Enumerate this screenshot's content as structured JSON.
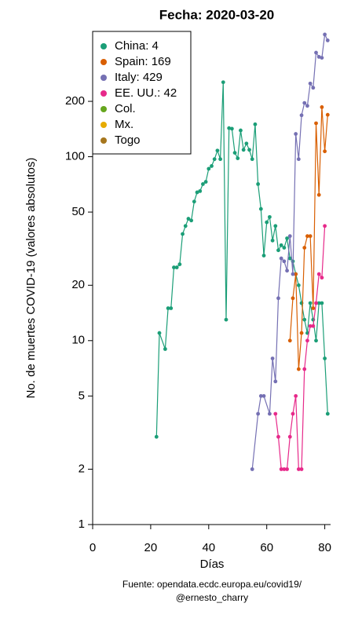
{
  "chart_data": {
    "type": "line",
    "title": "Fecha: 2020-03-20",
    "ylabel": "No. de muertes COVID-19 (valores absolutos)",
    "xlabel": "Días",
    "caption": [
      "Fuente: opendata.ecdc.europa.eu/covid19/",
      "@ernesto_charry"
    ],
    "xlim": [
      0,
      82
    ],
    "xticks": [
      0,
      20,
      40,
      60,
      80
    ],
    "ylim": [
      1,
      480
    ],
    "yticks": [
      1,
      2,
      5,
      10,
      20,
      50,
      100,
      200
    ],
    "log_y": true,
    "legend": "top-left",
    "series": [
      {
        "name": "China: 4",
        "color": "#1b9e77",
        "x": [
          22,
          23,
          25,
          26,
          27,
          28,
          29,
          30,
          31,
          32,
          33,
          34,
          35,
          36,
          37,
          38,
          39,
          40,
          41,
          42,
          43,
          44,
          45,
          46,
          47,
          48,
          49,
          50,
          51,
          52,
          53,
          54,
          55,
          56,
          57,
          58,
          59,
          60,
          61,
          62,
          63,
          64,
          65,
          66,
          67,
          68,
          69,
          70,
          71,
          72,
          73,
          74,
          75,
          76,
          77,
          78,
          79,
          80,
          81
        ],
        "values": [
          3,
          11,
          9,
          15,
          15,
          25,
          25,
          26,
          38,
          42,
          46,
          45,
          57,
          64,
          65,
          71,
          73,
          86,
          89,
          97,
          108,
          97,
          254,
          13,
          143,
          142,
          105,
          98,
          139,
          109,
          118,
          109,
          97,
          150,
          71,
          52,
          29,
          44,
          47,
          35,
          42,
          31,
          33,
          32,
          36,
          28,
          27,
          23,
          20,
          16,
          13,
          11,
          16,
          13,
          10,
          16,
          16,
          8,
          4
        ]
      },
      {
        "name": "Spain: 169",
        "color": "#d95f02",
        "x": [
          68,
          69,
          70,
          71,
          72,
          73,
          74,
          75,
          76,
          77,
          78,
          79,
          80,
          81
        ],
        "values": [
          10,
          17,
          23,
          7,
          11,
          32,
          37,
          37,
          15,
          152,
          62,
          186,
          107,
          169
        ]
      },
      {
        "name": "Italy: 429",
        "color": "#7570b3",
        "x": [
          55,
          57,
          58,
          59,
          61,
          62,
          63,
          64,
          65,
          66,
          67,
          68,
          69,
          70,
          71,
          72,
          73,
          74,
          75,
          76,
          77,
          78,
          79,
          80,
          81
        ],
        "values": [
          2,
          4,
          5,
          5,
          4,
          8,
          6,
          17,
          28,
          27,
          24,
          37,
          23,
          133,
          97,
          168,
          196,
          189,
          250,
          237,
          368,
          349,
          345,
          462,
          429
        ]
      },
      {
        "name": "EE. UU.: 42",
        "color": "#e7298a",
        "x": [
          63,
          64,
          65,
          66,
          67,
          68,
          69,
          70,
          71,
          72,
          73,
          74,
          75,
          76,
          77,
          78,
          79,
          80
        ],
        "values": [
          4,
          3,
          2,
          2,
          2,
          3,
          4,
          5,
          2,
          2,
          7,
          10,
          12,
          12,
          16,
          23,
          22,
          42
        ]
      },
      {
        "name": "Col.",
        "color": "#66a61e",
        "x": [],
        "values": []
      },
      {
        "name": "Mx.",
        "color": "#e6ab02",
        "x": [],
        "values": []
      },
      {
        "name": "Togo",
        "color": "#a6761d",
        "x": [],
        "values": []
      }
    ]
  }
}
